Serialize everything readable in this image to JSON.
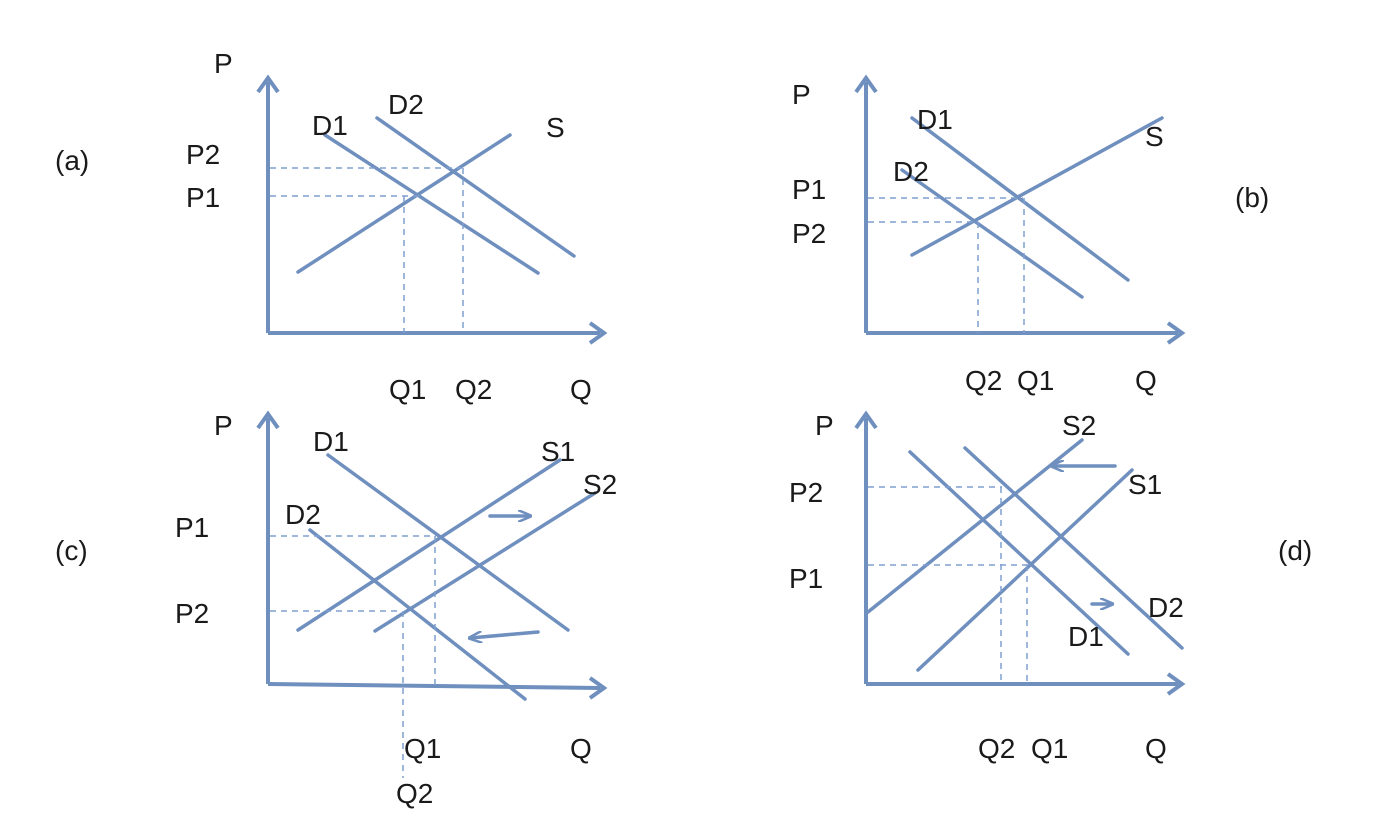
{
  "panels": {
    "a": {
      "tag": "(a)",
      "p_axis": "P",
      "q_axis": "Q",
      "prices": [
        "P2",
        "P1"
      ],
      "quantities": [
        "Q1",
        "Q2"
      ],
      "curves": [
        "D1",
        "D2",
        "S"
      ]
    },
    "b": {
      "tag": "(b)",
      "p_axis": "P",
      "q_axis": "Q",
      "prices": [
        "P1",
        "P2"
      ],
      "quantities": [
        "Q2",
        "Q1"
      ],
      "curves": [
        "D1",
        "D2",
        "S"
      ]
    },
    "c": {
      "tag": "(c)",
      "p_axis": "P",
      "q_axis": "Q",
      "prices": [
        "P1",
        "P2"
      ],
      "quantities": [
        "Q1",
        "Q2"
      ],
      "curves": [
        "D1",
        "D2",
        "S1",
        "S2"
      ]
    },
    "d": {
      "tag": "(d)",
      "p_axis": "P",
      "q_axis": "Q",
      "prices": [
        "P2",
        "P1"
      ],
      "quantities": [
        "Q2",
        "Q1"
      ],
      "curves": [
        "S2",
        "S1",
        "D2",
        "D1"
      ]
    }
  },
  "colors": {
    "line": "#6f8fbf",
    "text": "#1a1a1a"
  }
}
